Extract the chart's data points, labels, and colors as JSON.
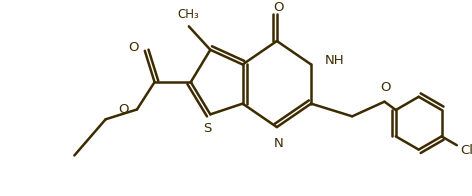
{
  "bg_color": "#ffffff",
  "bond_color": "#3d2b00",
  "line_width": 1.8,
  "figsize": [
    4.72,
    1.96
  ],
  "dpi": 100,
  "xlim": [
    0,
    472
  ],
  "ylim": [
    0,
    196
  ]
}
